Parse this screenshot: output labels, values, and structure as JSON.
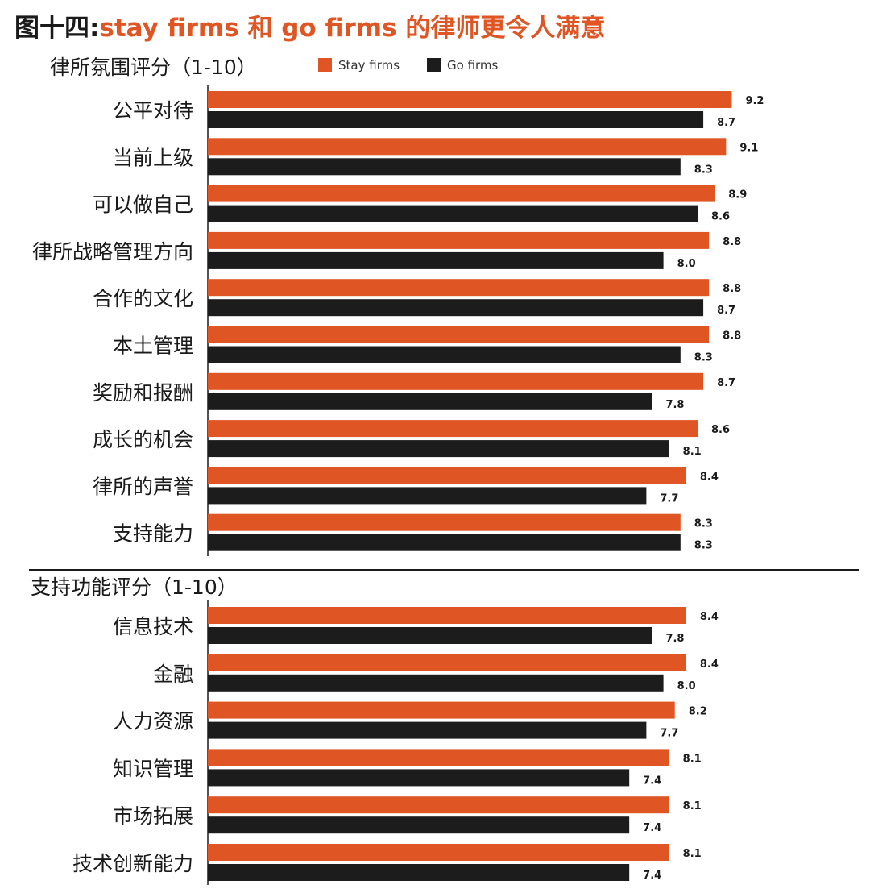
{
  "title_prefix": "图十四:",
  "title": "stay firms 和 go firms 的律师更令人满意",
  "legend": {
    "stay": "Stay firms",
    "go": "Go firms"
  },
  "colors": {
    "stay": "#e05524",
    "go": "#1c1c1c"
  },
  "chart_data": [
    {
      "type": "bar",
      "orientation": "horizontal",
      "title": "律所氛围评分（1-10）",
      "categories": [
        "公平对待",
        "当前上级",
        "可以做自己",
        "律所战略管理方向",
        "合作的文化",
        "本土管理",
        "奖励和报酬",
        "成长的机会",
        "律所的声誉",
        "支持能力"
      ],
      "series": [
        {
          "name": "Stay firms",
          "values": [
            9.2,
            9.1,
            8.9,
            8.8,
            8.8,
            8.8,
            8.7,
            8.6,
            8.4,
            8.3
          ],
          "labels": [
            "9.2",
            "9.1",
            "8.9",
            "8.8",
            "8.8",
            "8.8",
            "8.7",
            "8.6",
            "8.4",
            "8.3"
          ]
        },
        {
          "name": "Go firms",
          "values": [
            8.7,
            8.3,
            8.6,
            8.0,
            8.7,
            8.3,
            7.8,
            8.1,
            7.7,
            8.3
          ],
          "labels": [
            "8.7",
            "8.3",
            "8.6",
            "8.0",
            "8.7",
            "8.3",
            "7.8",
            "8.1",
            "7.7",
            "8.3"
          ]
        }
      ],
      "legend": "top",
      "grid": false
    },
    {
      "type": "bar",
      "orientation": "horizontal",
      "title": "支持功能评分（1-10）",
      "categories": [
        "信息技术",
        "金融",
        "人力资源",
        "知识管理",
        "市场拓展",
        "技术创新能力"
      ],
      "series": [
        {
          "name": "Stay firms",
          "values": [
            8.4,
            8.4,
            8.2,
            8.1,
            8.1,
            8.1
          ],
          "labels": [
            "8.4",
            "8.4",
            "8.2",
            "8.1",
            "8.1",
            "8.1"
          ]
        },
        {
          "name": "Go firms",
          "values": [
            7.8,
            8.0,
            7.7,
            7.4,
            7.4,
            7.4
          ],
          "labels": [
            "7.8",
            "8.0",
            "7.7",
            "7.4",
            "7.4",
            "7.4"
          ]
        }
      ],
      "grid": false
    }
  ]
}
